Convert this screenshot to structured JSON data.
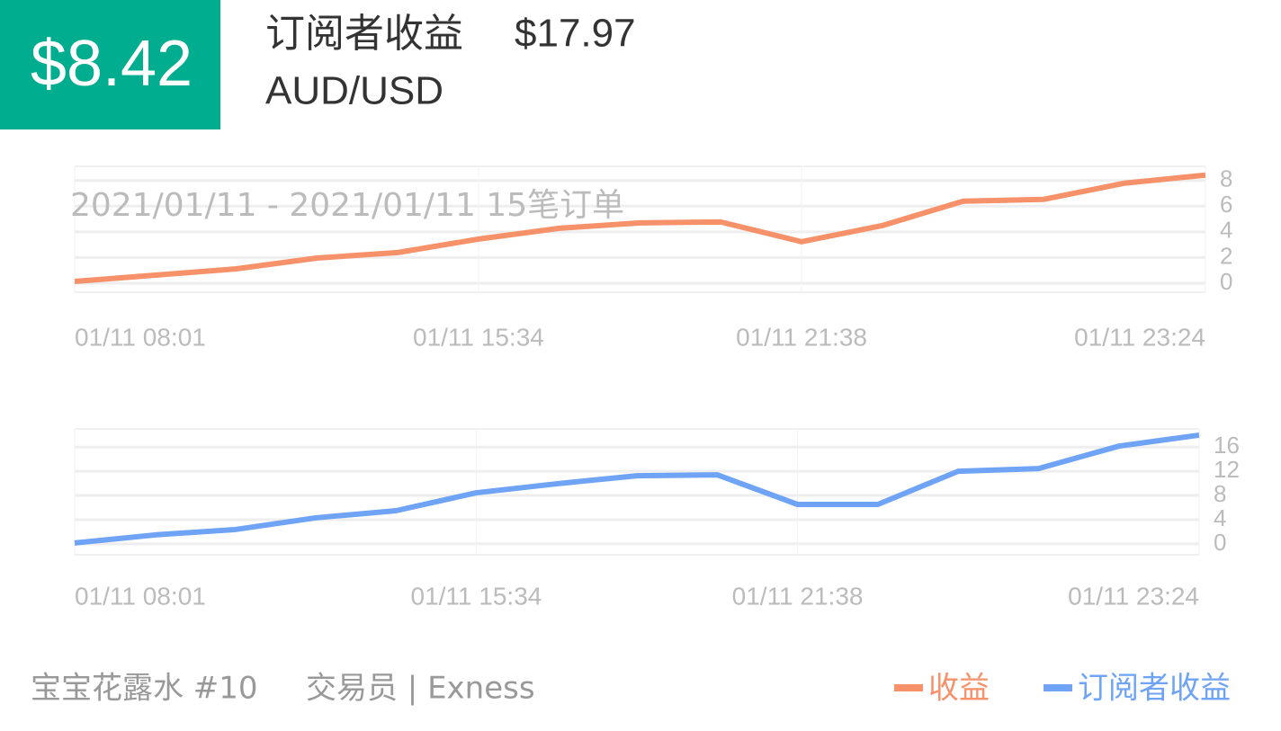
{
  "header": {
    "profit": "$8.42",
    "subscriber_label": "订阅者收益",
    "subscriber_value": "$17.97",
    "symbol": "AUD/USD"
  },
  "chart_data": [
    {
      "type": "line",
      "subtitle": "2021/01/11 - 2021/01/11  15笔订单",
      "categories": [
        "01/11 08:01",
        null,
        null,
        null,
        null,
        "01/11 15:34",
        null,
        null,
        null,
        "01/11 21:38",
        null,
        null,
        null,
        null,
        "01/11 23:24"
      ],
      "series": [
        {
          "name": "收益",
          "color": "#f6916a",
          "values": [
            0.14,
            0.63,
            1.12,
            1.96,
            2.39,
            3.44,
            4.28,
            4.7,
            4.77,
            3.23,
            4.49,
            6.39,
            6.53,
            7.79,
            8.42
          ]
        }
      ],
      "ylim": [
        -0.7,
        9.1
      ],
      "yticks": [
        0,
        2,
        4,
        6,
        8
      ],
      "grid": true
    },
    {
      "type": "line",
      "categories": [
        "01/11 08:01",
        null,
        null,
        null,
        null,
        "01/11 15:34",
        null,
        null,
        null,
        "01/11 21:38",
        null,
        null,
        null,
        null,
        "01/11 23:24"
      ],
      "series": [
        {
          "name": "订阅者收益",
          "color": "#6fa3f5",
          "values": [
            0.15,
            1.48,
            2.37,
            4.3,
            5.48,
            8.44,
            9.93,
            11.26,
            11.41,
            6.52,
            6.52,
            12.0,
            12.44,
            16.15,
            17.97
          ]
        }
      ],
      "ylim": [
        -1.8,
        19
      ],
      "yticks": [
        0,
        4,
        8,
        12,
        16
      ],
      "grid": true
    }
  ],
  "footer": {
    "trader": "宝宝花露水 #10",
    "broker": "交易员 | Exness"
  }
}
